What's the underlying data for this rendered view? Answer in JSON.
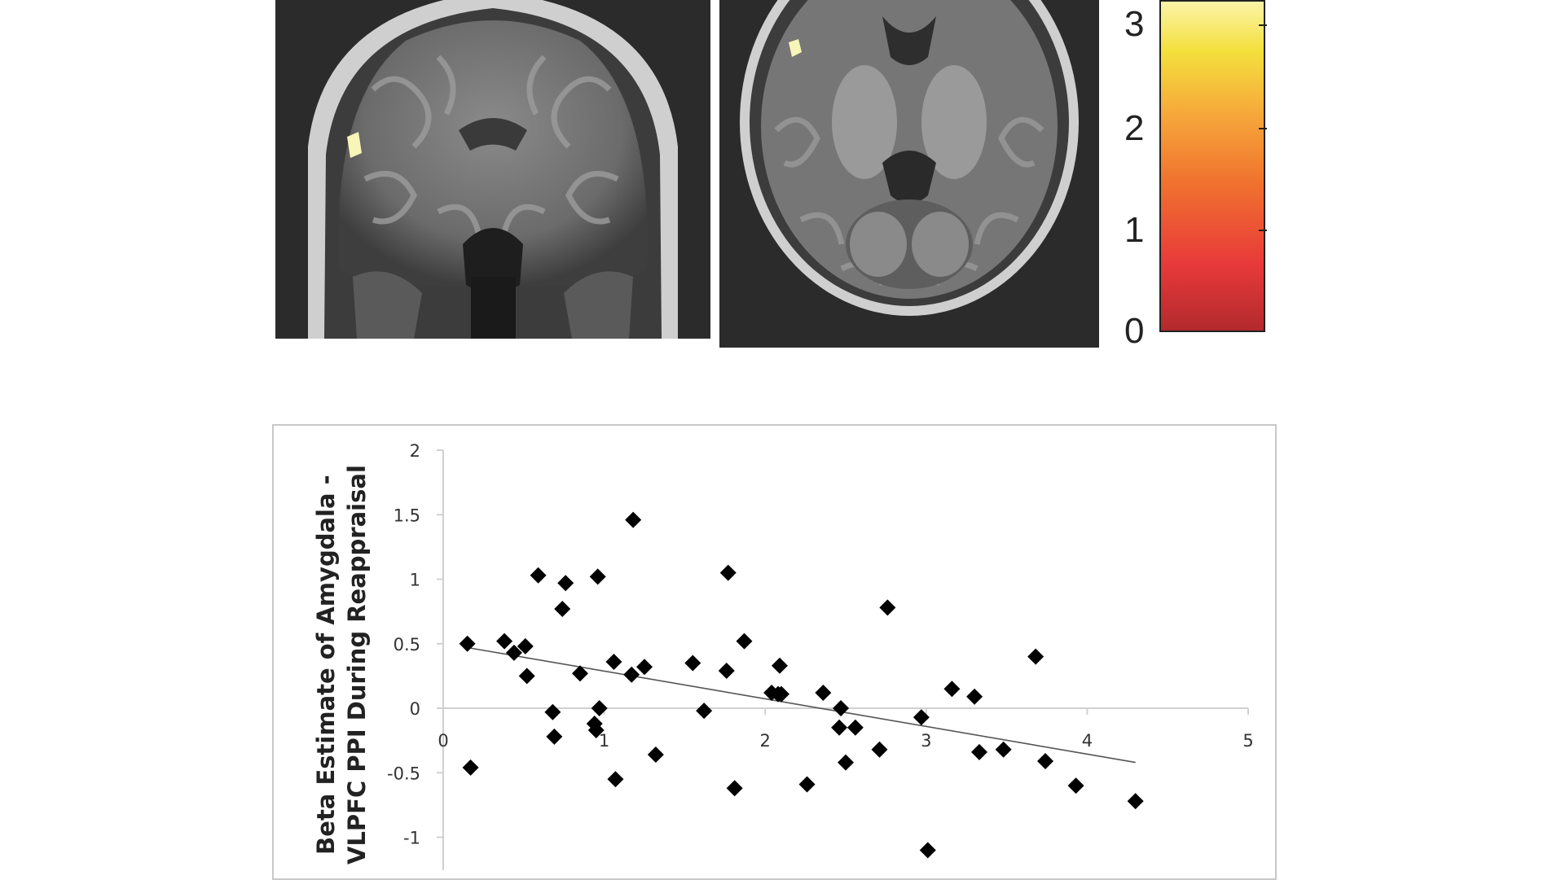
{
  "colorbar": {
    "ticks": [
      "3",
      "2",
      "1",
      "0"
    ],
    "stops": [
      "#b22a2c",
      "#e8393a",
      "#f0722e",
      "#f6a63a",
      "#f4e03c",
      "#fbf4a8"
    ]
  },
  "chart_data": {
    "type": "scatter",
    "xlabel": "",
    "ylabel_lines": [
      "Beta Estimate of Amygdala -",
      "VLPFC PPI During Reappraisal"
    ],
    "xlim": [
      0,
      5
    ],
    "ylim": [
      -1,
      2
    ],
    "xticks": [
      "0",
      "1",
      "2",
      "3",
      "4",
      "5"
    ],
    "yticks": [
      "2",
      "1.5",
      "1",
      "0.5",
      "0",
      "-0.5",
      "-1"
    ],
    "ytick_values": [
      2,
      1.5,
      1,
      0.5,
      0,
      -0.5,
      -1
    ],
    "marker_color": "#000000",
    "trendline": {
      "x": [
        0.15,
        4.3
      ],
      "y": [
        0.47,
        -0.42
      ]
    },
    "points": [
      [
        0.15,
        0.5
      ],
      [
        0.17,
        -0.46
      ],
      [
        0.38,
        0.52
      ],
      [
        0.44,
        0.43
      ],
      [
        0.51,
        0.48
      ],
      [
        0.52,
        0.25
      ],
      [
        0.59,
        1.03
      ],
      [
        0.68,
        -0.03
      ],
      [
        0.69,
        -0.22
      ],
      [
        0.74,
        0.77
      ],
      [
        0.76,
        0.97
      ],
      [
        0.85,
        0.27
      ],
      [
        0.94,
        -0.12
      ],
      [
        0.95,
        -0.17
      ],
      [
        0.96,
        1.02
      ],
      [
        0.97,
        0.0
      ],
      [
        1.06,
        0.36
      ],
      [
        1.07,
        -0.55
      ],
      [
        1.17,
        0.26
      ],
      [
        1.18,
        1.46
      ],
      [
        1.25,
        0.32
      ],
      [
        1.32,
        -0.36
      ],
      [
        1.55,
        0.35
      ],
      [
        1.62,
        -0.02
      ],
      [
        1.76,
        0.29
      ],
      [
        1.77,
        1.05
      ],
      [
        1.81,
        -0.62
      ],
      [
        1.87,
        0.52
      ],
      [
        2.04,
        0.12
      ],
      [
        2.08,
        0.11
      ],
      [
        2.09,
        0.33
      ],
      [
        2.1,
        0.11
      ],
      [
        2.26,
        -0.59
      ],
      [
        2.36,
        0.12
      ],
      [
        2.46,
        -0.15
      ],
      [
        2.47,
        0.0
      ],
      [
        2.5,
        -0.42
      ],
      [
        2.56,
        -0.15
      ],
      [
        2.71,
        -0.32
      ],
      [
        2.76,
        0.78
      ],
      [
        2.97,
        -0.07
      ],
      [
        3.01,
        -1.1
      ],
      [
        3.16,
        0.15
      ],
      [
        3.3,
        0.09
      ],
      [
        3.33,
        -0.34
      ],
      [
        3.48,
        -0.32
      ],
      [
        3.68,
        0.4
      ],
      [
        3.74,
        -0.41
      ],
      [
        3.93,
        -0.6
      ],
      [
        4.3,
        -0.72
      ]
    ]
  }
}
